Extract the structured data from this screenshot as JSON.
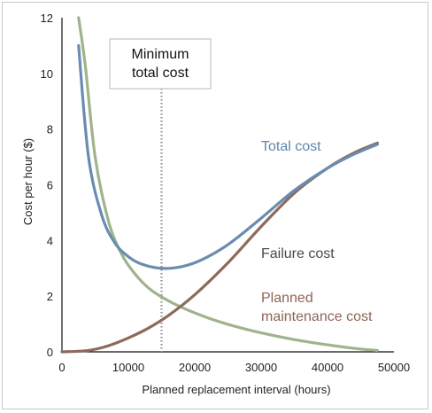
{
  "chart_data": {
    "type": "line",
    "title": "",
    "xlabel": "Planned replacement interval (hours)",
    "ylabel": "Cost per hour ($)",
    "xlim": [
      0,
      50000
    ],
    "ylim": [
      0,
      12
    ],
    "x_ticks": [
      "0",
      "10000",
      "20000",
      "30000",
      "40000",
      "50000"
    ],
    "y_ticks": [
      "0",
      "2",
      "4",
      "6",
      "8",
      "10",
      "12"
    ],
    "grid": false,
    "colors": {
      "total": "#6a8cb0",
      "failure": "#8e6a5c",
      "planned": "#9fb38c",
      "marker": "#8f8f8f"
    },
    "series": [
      {
        "name": "Total cost",
        "label_lines": [
          "Total cost"
        ],
        "color": "#6a8cb0",
        "x": [
          2500,
          4000,
          6000,
          8000,
          10000,
          12000,
          15000,
          18000,
          21000,
          25000,
          30000,
          35000,
          40000,
          44000,
          47500
        ],
        "y": [
          11.0,
          7.0,
          4.9,
          3.9,
          3.42,
          3.15,
          3.0,
          3.06,
          3.3,
          3.85,
          4.8,
          5.8,
          6.6,
          7.1,
          7.45
        ]
      },
      {
        "name": "Failure cost",
        "label_lines": [
          "Failure cost"
        ],
        "color": "#8e6a5c",
        "x": [
          0,
          4000,
          7000,
          10000,
          13000,
          16000,
          20000,
          25000,
          30000,
          35000,
          40000,
          44000,
          47500
        ],
        "y": [
          0.0,
          0.05,
          0.22,
          0.5,
          0.85,
          1.3,
          2.05,
          3.2,
          4.5,
          5.7,
          6.6,
          7.15,
          7.5
        ]
      },
      {
        "name": "Planned maintenance cost",
        "label_lines": [
          "Planned",
          "maintenance cost"
        ],
        "color": "#9fb38c",
        "x": [
          2500,
          3500,
          5000,
          7000,
          9000,
          11000,
          13000,
          15000,
          18000,
          22000,
          26000,
          30000,
          35000,
          40000,
          45000,
          47500
        ],
        "y": [
          12.0,
          10.3,
          7.0,
          4.7,
          3.5,
          2.8,
          2.3,
          1.97,
          1.6,
          1.22,
          0.92,
          0.68,
          0.44,
          0.25,
          0.1,
          0.05
        ]
      }
    ],
    "annotation": {
      "label_lines": [
        "Minimum",
        "total cost"
      ],
      "x": 15000
    }
  }
}
